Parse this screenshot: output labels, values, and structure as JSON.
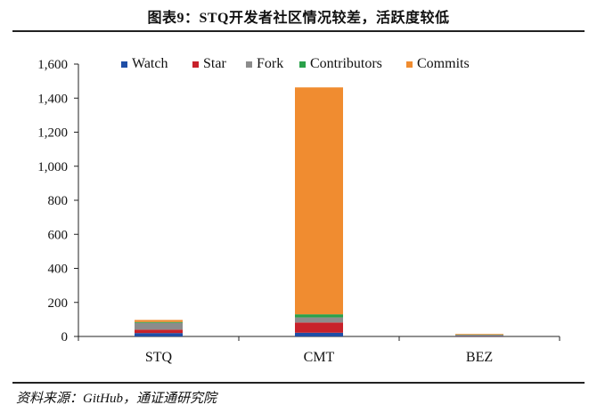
{
  "title": "图表9：STQ开发者社区情况较差，活跃度较低",
  "source": "资料来源：GitHub，通证通研究院",
  "chart_data": {
    "type": "bar",
    "stacked": true,
    "categories": [
      "STQ",
      "CMT",
      "BEZ"
    ],
    "series": [
      {
        "name": "Watch",
        "color": "#1f4ea6",
        "values": [
          20,
          22,
          2
        ]
      },
      {
        "name": "Star",
        "color": "#c8212a",
        "values": [
          20,
          60,
          2
        ]
      },
      {
        "name": "Fork",
        "color": "#8c8c8c",
        "values": [
          40,
          30,
          5
        ]
      },
      {
        "name": "Contributors",
        "color": "#2aa14a",
        "values": [
          5,
          18,
          2
        ]
      },
      {
        "name": "Commits",
        "color": "#f08c30",
        "values": [
          12,
          1333,
          4
        ]
      }
    ],
    "ylim": [
      0,
      1600
    ],
    "yticks": [
      0,
      200,
      400,
      600,
      800,
      1000,
      1200,
      1400,
      1600
    ],
    "ytick_labels": [
      "0",
      "200",
      "400",
      "600",
      "800",
      "1,000",
      "1,200",
      "1,400",
      "1,600"
    ],
    "legend_position": "top",
    "grid": false
  }
}
